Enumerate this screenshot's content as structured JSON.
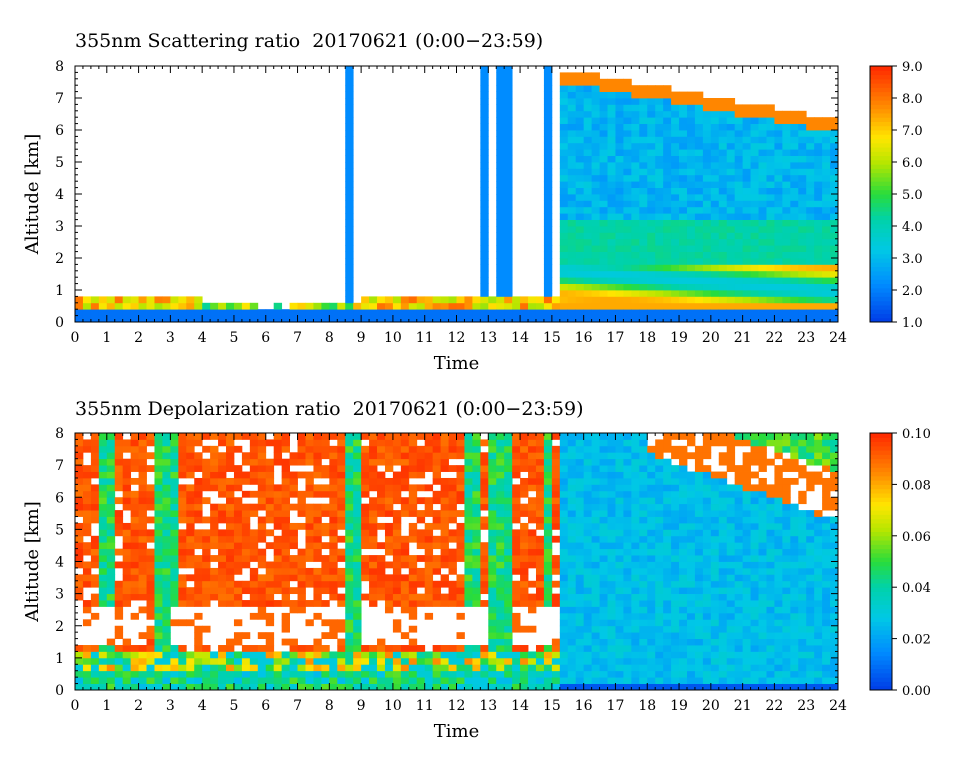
{
  "chart_data": [
    {
      "type": "heatmap",
      "title": "355nm Scattering ratio  20170621 (0:00−23:59)",
      "xlabel": "Time",
      "ylabel": "Altitude [km]",
      "x_ticks": [
        "0",
        "1",
        "2",
        "3",
        "4",
        "5",
        "6",
        "7",
        "8",
        "9",
        "10",
        "11",
        "12",
        "13",
        "14",
        "15",
        "16",
        "17",
        "18",
        "19",
        "20",
        "21",
        "22",
        "23",
        "24"
      ],
      "y_ticks": [
        "0",
        "1",
        "2",
        "3",
        "4",
        "5",
        "6",
        "7",
        "8"
      ],
      "xlim": [
        0,
        24
      ],
      "ylim": [
        0,
        8
      ],
      "colorbar": {
        "range": [
          1.0,
          9.0
        ],
        "labels": [
          "1.0",
          "2.0",
          "3.0",
          "4.0",
          "5.0",
          "6.0",
          "7.0",
          "8.0",
          "9.0"
        ]
      }
    },
    {
      "type": "heatmap",
      "title": "355nm Depolarization ratio  20170621 (0:00−23:59)",
      "xlabel": "Time",
      "ylabel": "Altitude [km]",
      "x_ticks": [
        "0",
        "1",
        "2",
        "3",
        "4",
        "5",
        "6",
        "7",
        "8",
        "9",
        "10",
        "11",
        "12",
        "13",
        "14",
        "15",
        "16",
        "17",
        "18",
        "19",
        "20",
        "21",
        "22",
        "23",
        "24"
      ],
      "y_ticks": [
        "0",
        "1",
        "2",
        "3",
        "4",
        "5",
        "6",
        "7",
        "8"
      ],
      "xlim": [
        0,
        24
      ],
      "ylim": [
        0,
        8
      ],
      "colorbar": {
        "range": [
          0.0,
          0.1
        ],
        "labels": [
          "0.00",
          "0.02",
          "0.04",
          "0.06",
          "0.08",
          "0.10"
        ]
      }
    }
  ]
}
